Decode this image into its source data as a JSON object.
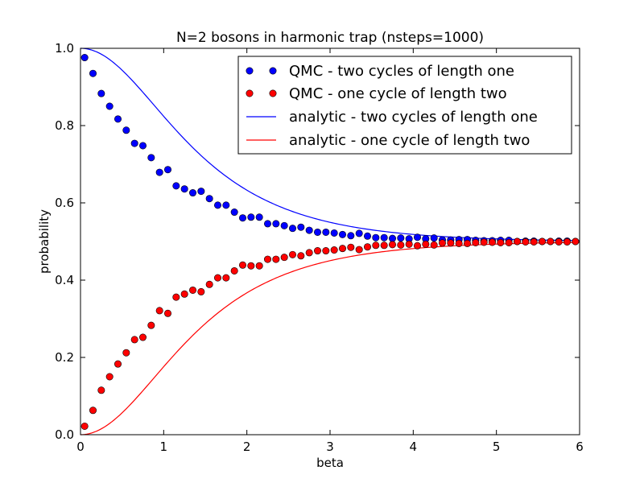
{
  "chart_data": {
    "type": "scatter",
    "title": "N=2 bosons in harmonic trap (nsteps=1000)",
    "xlabel": "beta",
    "ylabel": "probability",
    "xlim": [
      0,
      6
    ],
    "ylim": [
      0,
      1.0
    ],
    "x_ticks": [
      {
        "value": 0,
        "label": "0"
      },
      {
        "value": 1,
        "label": "1"
      },
      {
        "value": 2,
        "label": "2"
      },
      {
        "value": 3,
        "label": "3"
      },
      {
        "value": 4,
        "label": "4"
      },
      {
        "value": 5,
        "label": "5"
      },
      {
        "value": 6,
        "label": "6"
      }
    ],
    "y_ticks": [
      {
        "value": 0.0,
        "label": "0.0"
      },
      {
        "value": 0.2,
        "label": "0.2"
      },
      {
        "value": 0.4,
        "label": "0.4"
      },
      {
        "value": 0.6,
        "label": "0.6"
      },
      {
        "value": 0.8,
        "label": "0.8"
      },
      {
        "value": 1.0,
        "label": "1.0"
      }
    ],
    "grid": false,
    "legend_position": "top-right",
    "series": [
      {
        "name": "QMC - two cycles of length one",
        "kind": "points",
        "color": "#0000ff",
        "x": [
          0.05,
          0.15,
          0.25,
          0.35,
          0.45,
          0.55,
          0.65,
          0.75,
          0.85,
          0.95,
          1.05,
          1.15,
          1.25,
          1.35,
          1.45,
          1.55,
          1.65,
          1.75,
          1.85,
          1.95,
          2.05,
          2.15,
          2.25,
          2.35,
          2.45,
          2.55,
          2.65,
          2.75,
          2.85,
          2.95,
          3.05,
          3.15,
          3.25,
          3.35,
          3.45,
          3.55,
          3.65,
          3.75,
          3.85,
          3.95,
          4.05,
          4.15,
          4.25,
          4.35,
          4.45,
          4.55,
          4.65,
          4.75,
          4.85,
          4.95,
          5.05,
          5.15,
          5.25,
          5.35,
          5.45,
          5.55,
          5.65,
          5.75,
          5.85,
          5.95
        ],
        "y": [
          0.976,
          0.935,
          0.883,
          0.85,
          0.817,
          0.788,
          0.754,
          0.748,
          0.717,
          0.679,
          0.686,
          0.644,
          0.636,
          0.626,
          0.63,
          0.611,
          0.594,
          0.594,
          0.576,
          0.561,
          0.563,
          0.563,
          0.546,
          0.546,
          0.541,
          0.534,
          0.537,
          0.529,
          0.524,
          0.524,
          0.522,
          0.518,
          0.515,
          0.521,
          0.514,
          0.51,
          0.51,
          0.508,
          0.509,
          0.507,
          0.511,
          0.507,
          0.509,
          0.504,
          0.504,
          0.505,
          0.505,
          0.503,
          0.502,
          0.502,
          0.503,
          0.503,
          0.5,
          0.501,
          0.501,
          0.5,
          0.5,
          0.501,
          0.501,
          0.5
        ]
      },
      {
        "name": "QMC - one cycle of length two",
        "kind": "points",
        "color": "#ff0000",
        "x": [
          0.05,
          0.15,
          0.25,
          0.35,
          0.45,
          0.55,
          0.65,
          0.75,
          0.85,
          0.95,
          1.05,
          1.15,
          1.25,
          1.35,
          1.45,
          1.55,
          1.65,
          1.75,
          1.85,
          1.95,
          2.05,
          2.15,
          2.25,
          2.35,
          2.45,
          2.55,
          2.65,
          2.75,
          2.85,
          2.95,
          3.05,
          3.15,
          3.25,
          3.35,
          3.45,
          3.55,
          3.65,
          3.75,
          3.85,
          3.95,
          4.05,
          4.15,
          4.25,
          4.35,
          4.45,
          4.55,
          4.65,
          4.75,
          4.85,
          4.95,
          5.05,
          5.15,
          5.25,
          5.35,
          5.45,
          5.55,
          5.65,
          5.75,
          5.85,
          5.95
        ],
        "y": [
          0.022,
          0.063,
          0.115,
          0.15,
          0.183,
          0.212,
          0.246,
          0.252,
          0.283,
          0.321,
          0.314,
          0.356,
          0.364,
          0.374,
          0.37,
          0.389,
          0.406,
          0.406,
          0.424,
          0.439,
          0.437,
          0.437,
          0.454,
          0.454,
          0.459,
          0.466,
          0.463,
          0.471,
          0.476,
          0.476,
          0.478,
          0.482,
          0.485,
          0.479,
          0.486,
          0.49,
          0.49,
          0.492,
          0.491,
          0.493,
          0.489,
          0.493,
          0.491,
          0.496,
          0.496,
          0.495,
          0.495,
          0.497,
          0.498,
          0.498,
          0.497,
          0.497,
          0.5,
          0.499,
          0.499,
          0.5,
          0.5,
          0.499,
          0.499,
          0.5
        ]
      },
      {
        "name": "analytic - two cycles of length one",
        "kind": "line",
        "color": "#0000ff",
        "function": "0.5*(1+1/cosh(beta))"
      },
      {
        "name": "analytic - one cycle of length two",
        "kind": "line",
        "color": "#ff0000",
        "function": "0.5*(1-1/cosh(beta))"
      }
    ]
  }
}
